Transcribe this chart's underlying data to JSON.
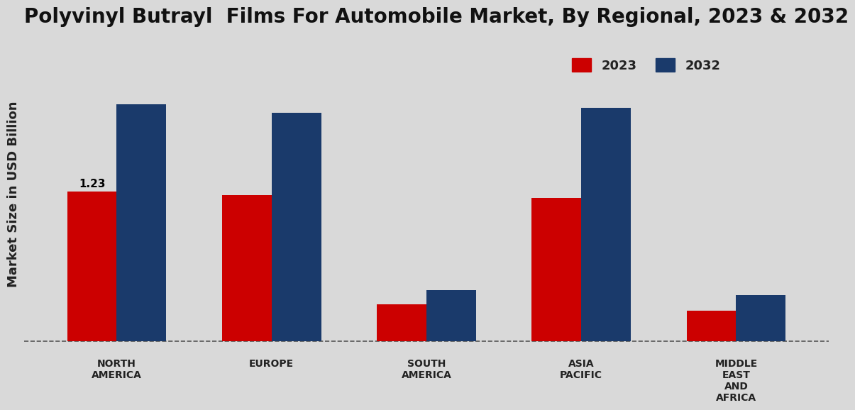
{
  "title": "Polyvinyl Butrayl  Films For Automobile Market, By Regional, 2023 & 2032",
  "ylabel": "Market Size in USD Billion",
  "categories": [
    "NORTH\nAMERICA",
    "EUROPE",
    "SOUTH\nAMERICA",
    "ASIA\nPACIFIC",
    "MIDDLE\nEAST\nAND\nAFRICA"
  ],
  "values_2023": [
    1.23,
    1.2,
    0.3,
    1.18,
    0.25
  ],
  "values_2032": [
    1.95,
    1.88,
    0.42,
    1.92,
    0.38
  ],
  "color_2023": "#cc0000",
  "color_2032": "#1a3a6b",
  "bar_width": 0.32,
  "annotation_label": "1.23",
  "annotation_index": 0,
  "background_color": "#d9d9d9",
  "legend_labels": [
    "2023",
    "2032"
  ],
  "title_fontsize": 20,
  "ylabel_fontsize": 13,
  "tick_fontsize": 10
}
